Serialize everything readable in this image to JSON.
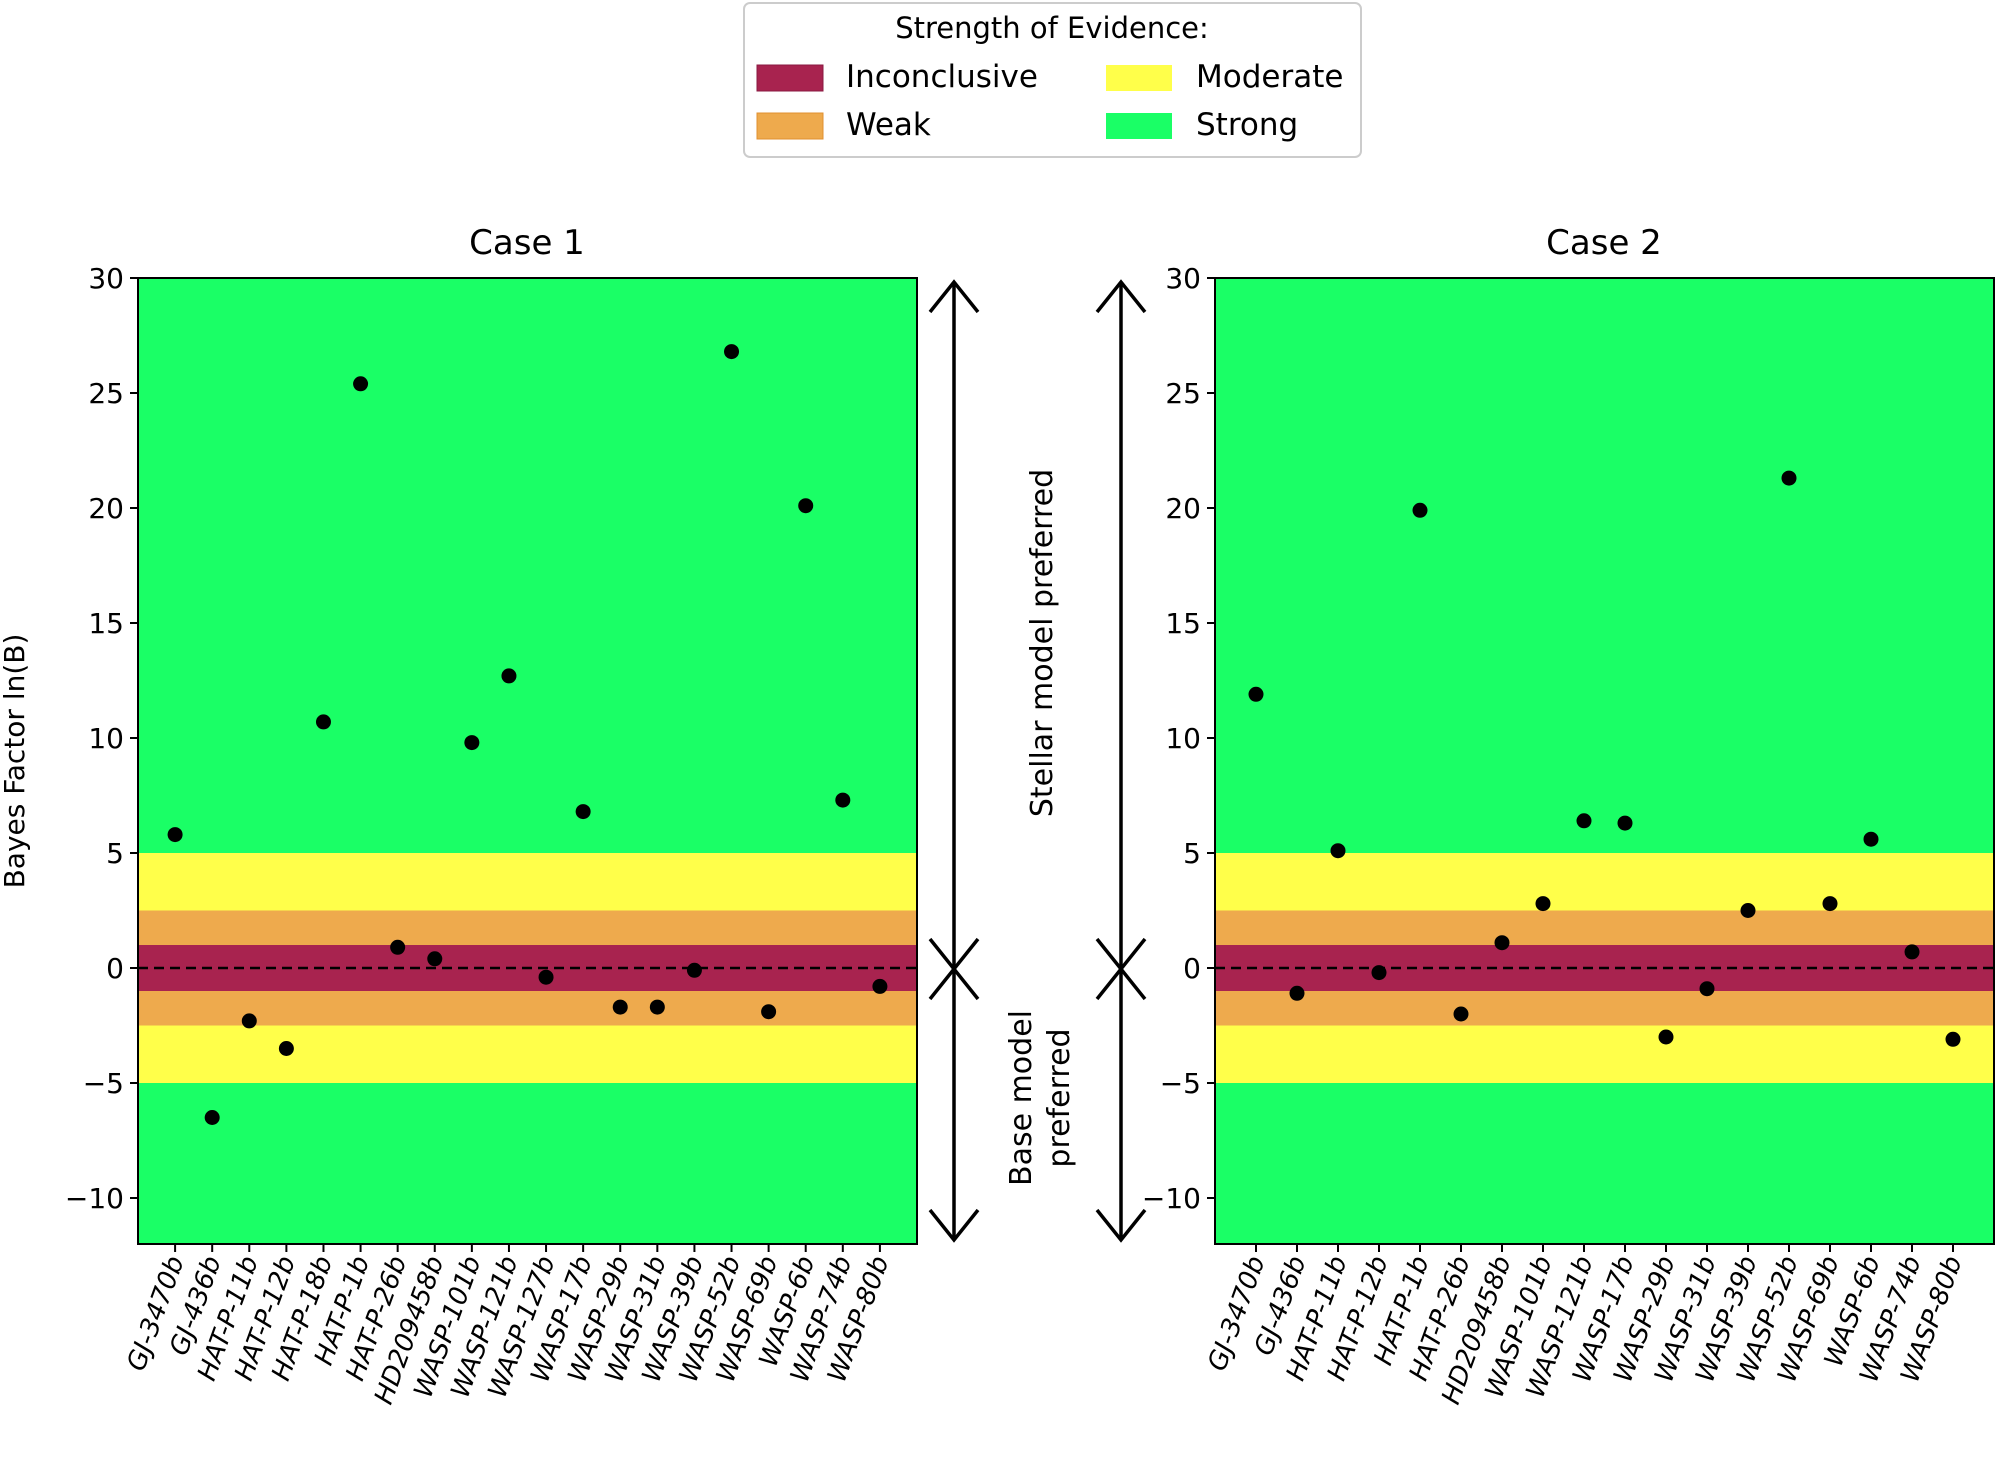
{
  "legend": {
    "title": "Strength of Evidence:",
    "placement": "top-center",
    "entries": [
      {
        "label": "Inconclusive",
        "color": "#a8234f"
      },
      {
        "label": "Moderate",
        "color": "#ffff4a"
      },
      {
        "label": "Weak",
        "color": "#eeaa4d"
      },
      {
        "label": "Strong",
        "color": "#1aff66"
      }
    ]
  },
  "annotations": {
    "stellar": "Stellar model preferred",
    "base_line1": "Base model",
    "base_line2": "preferred"
  },
  "bands": [
    {
      "name": "Strong",
      "range": [
        5,
        30
      ],
      "color": "#1aff66"
    },
    {
      "name": "Moderate",
      "range": [
        2.5,
        5
      ],
      "color": "#ffff4a"
    },
    {
      "name": "Weak",
      "range": [
        1,
        2.5
      ],
      "color": "#eeaa4d"
    },
    {
      "name": "Inconclusive",
      "range": [
        -1,
        1
      ],
      "color": "#a8234f"
    },
    {
      "name": "Weak",
      "range": [
        -2.5,
        -1
      ],
      "color": "#eeaa4d"
    },
    {
      "name": "Moderate",
      "range": [
        -5,
        -2.5
      ],
      "color": "#ffff4a"
    },
    {
      "name": "Strong",
      "range": [
        -12,
        -5
      ],
      "color": "#1aff66"
    }
  ],
  "chart_data": [
    {
      "type": "scatter",
      "title": "Case 1",
      "ylabel": "Bayes Factor ln(B)",
      "xlabel": "",
      "ylim": [
        -12,
        30
      ],
      "yticks": [
        -10,
        -5,
        0,
        5,
        10,
        15,
        20,
        25,
        30
      ],
      "reference_line": 0,
      "categories": [
        "GJ-3470b",
        "GJ-436b",
        "HAT-P-11b",
        "HAT-P-12b",
        "HAT-P-18b",
        "HAT-P-1b",
        "HAT-P-26b",
        "HD209458b",
        "WASP-101b",
        "WASP-121b",
        "WASP-127b",
        "WASP-17b",
        "WASP-29b",
        "WASP-31b",
        "WASP-39b",
        "WASP-52b",
        "WASP-69b",
        "WASP-6b",
        "WASP-74b",
        "WASP-80b"
      ],
      "values": [
        5.8,
        -6.5,
        -2.3,
        -3.5,
        10.7,
        25.4,
        0.9,
        0.4,
        9.8,
        12.7,
        -0.4,
        6.8,
        -1.7,
        -1.7,
        -0.1,
        26.8,
        -1.9,
        20.1,
        7.3,
        -0.8
      ]
    },
    {
      "type": "scatter",
      "title": "Case 2",
      "ylabel": "",
      "xlabel": "",
      "ylim": [
        -12,
        30
      ],
      "yticks": [
        -10,
        -5,
        0,
        5,
        10,
        15,
        20,
        25,
        30
      ],
      "reference_line": 0,
      "categories": [
        "GJ-3470b",
        "GJ-436b",
        "HAT-P-11b",
        "HAT-P-12b",
        "HAT-P-1b",
        "HAT-P-26b",
        "HD209458b",
        "WASP-101b",
        "WASP-121b",
        "WASP-17b",
        "WASP-29b",
        "WASP-31b",
        "WASP-39b",
        "WASP-52b",
        "WASP-69b",
        "WASP-6b",
        "WASP-74b",
        "WASP-80b"
      ],
      "values": [
        11.9,
        -1.1,
        5.1,
        -0.2,
        19.9,
        -2.0,
        1.1,
        2.8,
        6.4,
        6.3,
        -3.0,
        -0.9,
        2.5,
        21.3,
        2.8,
        5.6,
        0.7,
        -3.1
      ]
    }
  ]
}
